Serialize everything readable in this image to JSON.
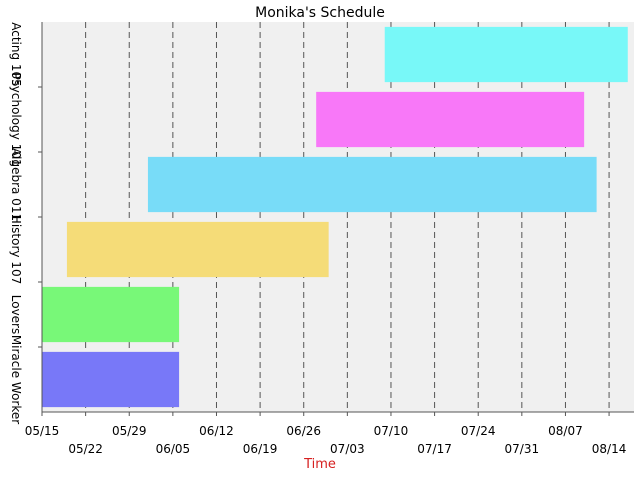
{
  "chart_data": {
    "type": "bar",
    "orientation": "horizontal",
    "title": "Monika's Schedule",
    "xlabel": "Time",
    "ylabel": "",
    "x_axis": "date",
    "xlim": [
      "2025-05-15",
      "2025-08-18"
    ],
    "grid": true,
    "legend": "none",
    "x_ticks": [
      {
        "date": "2025-05-15",
        "label": "05/15"
      },
      {
        "date": "2025-05-22",
        "label": "05/22"
      },
      {
        "date": "2025-05-29",
        "label": "05/29"
      },
      {
        "date": "2025-06-05",
        "label": "06/05"
      },
      {
        "date": "2025-06-12",
        "label": "06/12"
      },
      {
        "date": "2025-06-19",
        "label": "06/19"
      },
      {
        "date": "2025-06-26",
        "label": "06/26"
      },
      {
        "date": "2025-07-03",
        "label": "07/03"
      },
      {
        "date": "2025-07-10",
        "label": "07/10"
      },
      {
        "date": "2025-07-17",
        "label": "07/17"
      },
      {
        "date": "2025-07-24",
        "label": "07/24"
      },
      {
        "date": "2025-07-31",
        "label": "07/31"
      },
      {
        "date": "2025-08-07",
        "label": "08/07"
      },
      {
        "date": "2025-08-14",
        "label": "08/14"
      }
    ],
    "categories": [
      "Acting 105",
      "Psychology 101",
      "Algebra 011",
      "History 107",
      "Lovers",
      "Miracle Worker"
    ],
    "tasks": [
      {
        "category": "Acting 105",
        "start": "2025-07-09",
        "end": "2025-08-17",
        "color": "#78f8f8"
      },
      {
        "category": "Psychology 101",
        "start": "2025-06-28",
        "end": "2025-08-10",
        "color": "#f878f8"
      },
      {
        "category": "Algebra 011",
        "start": "2025-06-01",
        "end": "2025-08-12",
        "color": "#78dcf8"
      },
      {
        "category": "History 107",
        "start": "2025-05-19",
        "end": "2025-06-30",
        "color": "#f5dc78"
      },
      {
        "category": "Lovers",
        "start": "2025-05-15",
        "end": "2025-06-06",
        "color": "#78f878"
      },
      {
        "category": "Miracle Worker",
        "start": "2025-05-15",
        "end": "2025-06-06",
        "color": "#7878f8"
      }
    ]
  }
}
